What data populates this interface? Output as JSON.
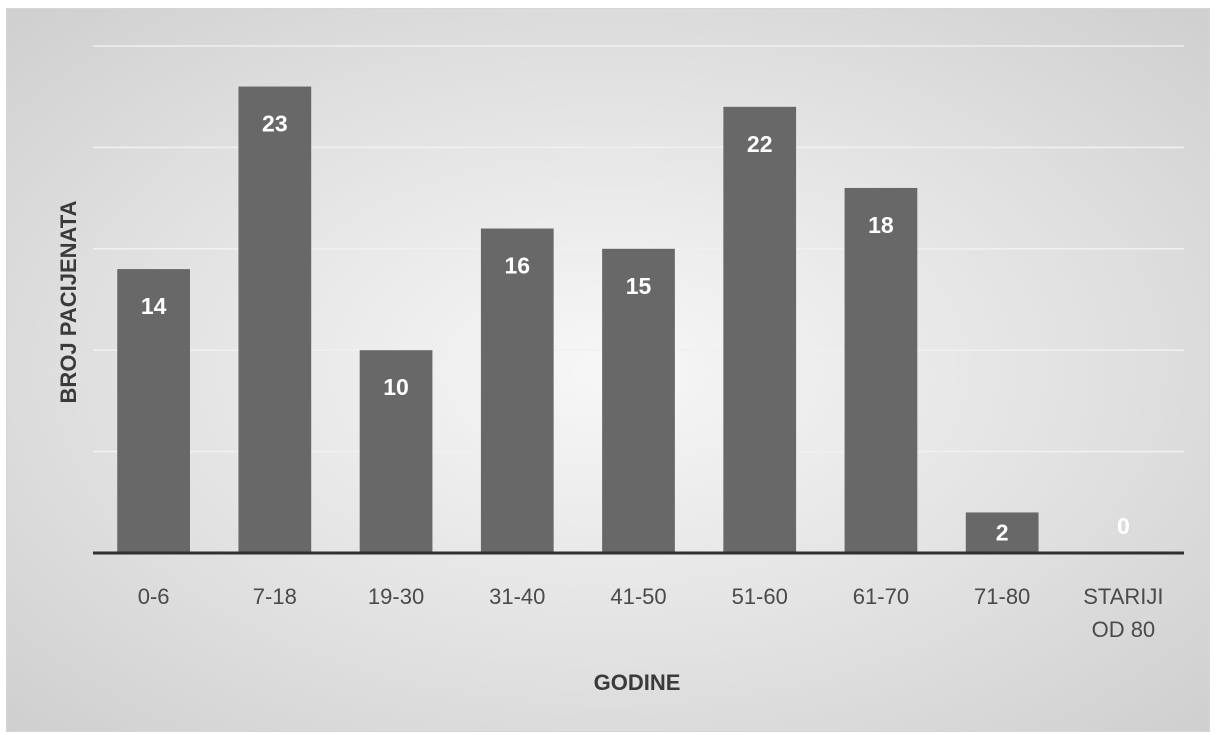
{
  "chart_data": {
    "type": "bar",
    "categories": [
      "0-6",
      "7-18",
      "19-30",
      "31-40",
      "41-50",
      "51-60",
      "61-70",
      "71-80",
      "STARIJI OD 80"
    ],
    "category_lines": [
      [
        "0-6"
      ],
      [
        "7-18"
      ],
      [
        "19-30"
      ],
      [
        "31-40"
      ],
      [
        "41-50"
      ],
      [
        "51-60"
      ],
      [
        "61-70"
      ],
      [
        "71-80"
      ],
      [
        "STARIJI",
        "OD 80"
      ]
    ],
    "values": [
      14,
      23,
      10,
      16,
      15,
      22,
      18,
      2,
      0
    ],
    "data_labels": [
      "14",
      "23",
      "10",
      "16",
      "15",
      "22",
      "18",
      "2",
      "0"
    ],
    "title": "",
    "xlabel": "GODINE",
    "ylabel": "BROJ PACIJENATA",
    "ylim": [
      0,
      25
    ],
    "gridline_step": 5,
    "grid": true,
    "y_tick_labels_shown": false,
    "legend": "none",
    "bar_color": "#686868",
    "label_color": "#ffffff"
  }
}
